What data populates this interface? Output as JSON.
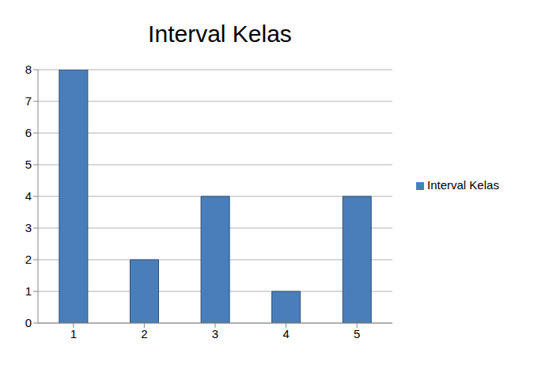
{
  "chart_data": {
    "type": "bar",
    "title": "Interval Kelas",
    "categories": [
      "1",
      "2",
      "3",
      "4",
      "5"
    ],
    "series": [
      {
        "name": "Interval Kelas",
        "color": "#4a7ebb",
        "values": [
          8,
          2,
          4,
          1,
          4
        ]
      }
    ],
    "ylim": [
      0,
      8
    ],
    "yticks": [
      0,
      1,
      2,
      3,
      4,
      5,
      6,
      7,
      8
    ],
    "grid": true,
    "legend": "right"
  }
}
